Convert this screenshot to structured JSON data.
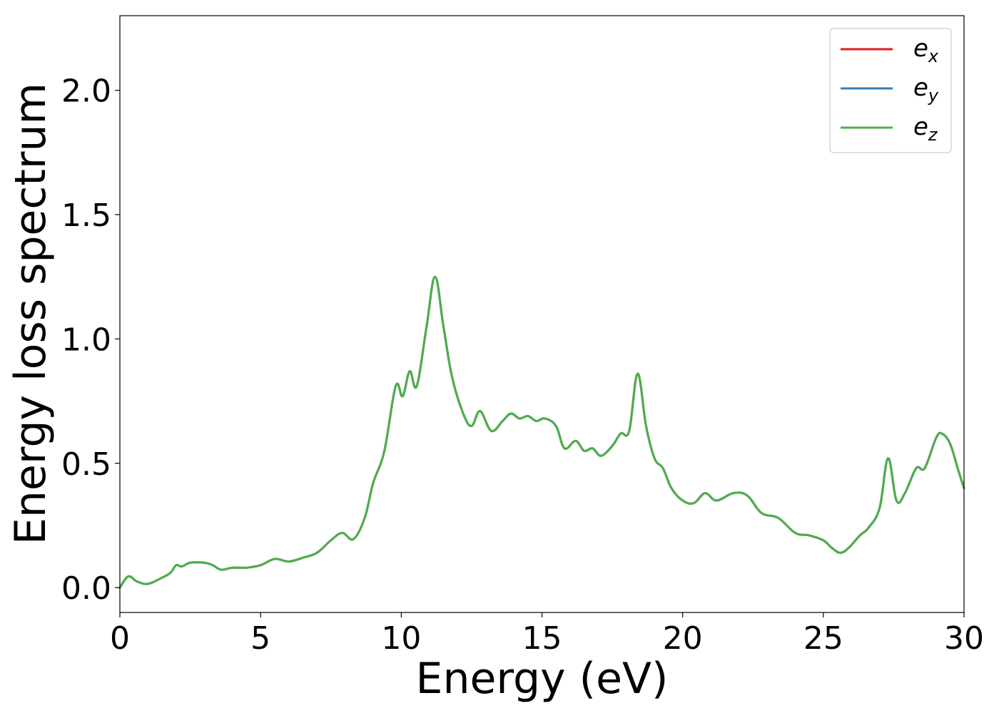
{
  "chart_data": {
    "type": "line",
    "xlabel": "Energy (eV)",
    "ylabel": "Energy loss spectrum",
    "xlim": [
      0,
      30
    ],
    "ylim": [
      -0.1,
      2.3
    ],
    "xticks": [
      0,
      5,
      10,
      15,
      20,
      25,
      30
    ],
    "xtick_labels": [
      "0",
      "5",
      "10",
      "15",
      "20",
      "25",
      "30"
    ],
    "yticks": [
      0.0,
      0.5,
      1.0,
      1.5,
      2.0
    ],
    "ytick_labels": [
      "0.0",
      "0.5",
      "1.0",
      "1.5",
      "2.0"
    ],
    "grid": false,
    "legend_position": "top-right",
    "x": [
      0.0,
      0.3,
      0.6,
      1.0,
      1.5,
      1.8,
      2.0,
      2.2,
      2.5,
      3.0,
      3.3,
      3.6,
      4.0,
      4.5,
      5.0,
      5.5,
      6.0,
      6.5,
      7.0,
      7.5,
      7.9,
      8.3,
      8.7,
      9.0,
      9.4,
      9.8,
      10.05,
      10.3,
      10.55,
      10.9,
      11.2,
      11.5,
      11.8,
      12.2,
      12.5,
      12.8,
      13.2,
      13.6,
      13.9,
      14.2,
      14.5,
      14.8,
      15.1,
      15.5,
      15.8,
      16.2,
      16.5,
      16.8,
      17.1,
      17.5,
      17.8,
      18.1,
      18.4,
      18.7,
      19.0,
      19.3,
      19.6,
      20.0,
      20.4,
      20.8,
      21.2,
      21.8,
      22.3,
      22.8,
      23.4,
      24.0,
      24.5,
      25.0,
      25.3,
      25.6,
      25.9,
      26.3,
      26.6,
      27.0,
      27.3,
      27.6,
      27.9,
      28.3,
      28.6,
      29.0,
      29.2,
      29.5,
      29.8,
      30.0
    ],
    "series": [
      {
        "name": "e_x",
        "values": [
          0.0,
          0.045,
          0.025,
          0.015,
          0.04,
          0.06,
          0.09,
          0.085,
          0.1,
          0.1,
          0.09,
          0.072,
          0.08,
          0.08,
          0.09,
          0.115,
          0.105,
          0.12,
          0.14,
          0.19,
          0.22,
          0.195,
          0.28,
          0.42,
          0.55,
          0.81,
          0.77,
          0.87,
          0.81,
          1.05,
          1.25,
          1.05,
          0.85,
          0.7,
          0.65,
          0.71,
          0.63,
          0.67,
          0.7,
          0.68,
          0.69,
          0.67,
          0.68,
          0.65,
          0.56,
          0.59,
          0.55,
          0.56,
          0.53,
          0.57,
          0.62,
          0.63,
          0.86,
          0.65,
          0.52,
          0.48,
          0.4,
          0.35,
          0.34,
          0.38,
          0.35,
          0.38,
          0.37,
          0.3,
          0.28,
          0.22,
          0.21,
          0.19,
          0.16,
          0.14,
          0.16,
          0.21,
          0.24,
          0.32,
          0.52,
          0.35,
          0.38,
          0.48,
          0.48,
          0.6,
          0.62,
          0.58,
          0.47,
          0.4
        ]
      },
      {
        "name": "e_y",
        "values": [
          0.0,
          0.045,
          0.025,
          0.015,
          0.04,
          0.06,
          0.09,
          0.085,
          0.1,
          0.1,
          0.09,
          0.072,
          0.08,
          0.08,
          0.09,
          0.115,
          0.105,
          0.12,
          0.14,
          0.19,
          0.22,
          0.195,
          0.28,
          0.42,
          0.55,
          0.81,
          0.77,
          0.87,
          0.81,
          1.05,
          1.25,
          1.05,
          0.85,
          0.7,
          0.65,
          0.71,
          0.63,
          0.67,
          0.7,
          0.68,
          0.69,
          0.67,
          0.68,
          0.65,
          0.56,
          0.59,
          0.55,
          0.56,
          0.53,
          0.57,
          0.62,
          0.63,
          0.86,
          0.65,
          0.52,
          0.48,
          0.4,
          0.35,
          0.34,
          0.38,
          0.35,
          0.38,
          0.37,
          0.3,
          0.28,
          0.22,
          0.21,
          0.19,
          0.16,
          0.14,
          0.16,
          0.21,
          0.24,
          0.32,
          0.52,
          0.35,
          0.38,
          0.48,
          0.48,
          0.6,
          0.62,
          0.58,
          0.47,
          0.4
        ]
      },
      {
        "name": "e_z",
        "values": [
          0.0,
          0.045,
          0.025,
          0.015,
          0.04,
          0.06,
          0.09,
          0.085,
          0.1,
          0.1,
          0.09,
          0.072,
          0.08,
          0.08,
          0.09,
          0.115,
          0.105,
          0.12,
          0.14,
          0.19,
          0.22,
          0.195,
          0.28,
          0.42,
          0.55,
          0.81,
          0.77,
          0.87,
          0.81,
          1.05,
          1.25,
          1.05,
          0.85,
          0.7,
          0.65,
          0.71,
          0.63,
          0.67,
          0.7,
          0.68,
          0.69,
          0.67,
          0.68,
          0.65,
          0.56,
          0.59,
          0.55,
          0.56,
          0.53,
          0.57,
          0.62,
          0.63,
          0.86,
          0.65,
          0.52,
          0.48,
          0.4,
          0.35,
          0.34,
          0.38,
          0.35,
          0.38,
          0.37,
          0.3,
          0.28,
          0.22,
          0.21,
          0.19,
          0.16,
          0.14,
          0.16,
          0.21,
          0.24,
          0.32,
          0.52,
          0.35,
          0.38,
          0.48,
          0.48,
          0.6,
          0.62,
          0.58,
          0.47,
          0.4
        ]
      }
    ],
    "legend": [
      {
        "base": "e",
        "sub": "x",
        "color": "#e41a1c"
      },
      {
        "base": "e",
        "sub": "y",
        "color": "#377eb8"
      },
      {
        "base": "e",
        "sub": "z",
        "color": "#4daf4a"
      }
    ]
  }
}
